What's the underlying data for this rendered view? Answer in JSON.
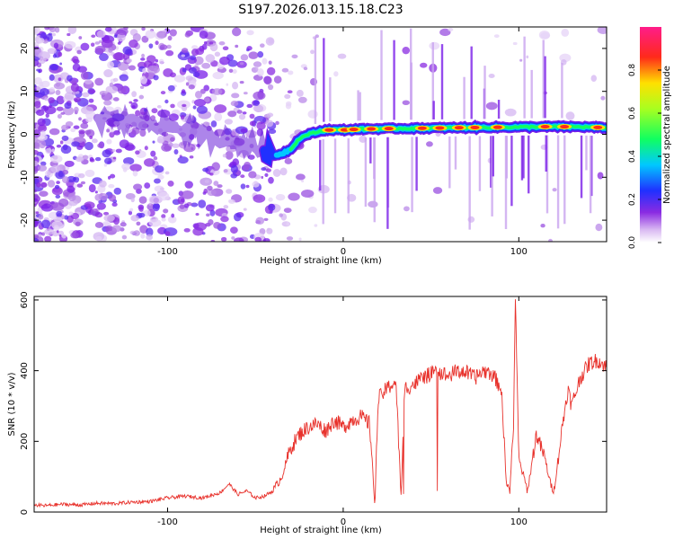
{
  "title": "S197.2026.013.15.18.C23",
  "chart_data": [
    {
      "type": "heatmap",
      "title": "S197.2026.013.15.18.C23",
      "xlabel": "Height of straight line (km)",
      "ylabel": "Frequency (Hz)",
      "xlim": [
        -176,
        150
      ],
      "ylim": [
        -25,
        25
      ],
      "xticks": [
        -100,
        0,
        100
      ],
      "yticks": [
        -20,
        -10,
        0,
        10,
        20
      ],
      "colorbar": {
        "label": "Normalized spectral amplitude",
        "range": [
          0,
          1
        ],
        "ticks": [
          0.0,
          0.2,
          0.4,
          0.6,
          0.8
        ],
        "colormap": "rainbow (white-violet-blue-cyan-green-yellow-red-magenta)"
      },
      "ridge_frequency": {
        "x": [
          -176,
          -150,
          -120,
          -100,
          -90,
          -80,
          -70,
          -60,
          -50,
          -45,
          -40,
          -35,
          -30,
          -25,
          -20,
          -15,
          -10,
          0,
          10,
          20,
          40,
          60,
          80,
          100,
          120,
          140,
          150
        ],
        "y": [
          5,
          4,
          3,
          2,
          1,
          0,
          -1,
          -2,
          -3,
          -4,
          -5,
          -4.5,
          -3.5,
          -1,
          0,
          0.5,
          1,
          1,
          1.2,
          1.3,
          1.4,
          1.5,
          1.6,
          1.7,
          1.8,
          1.7,
          1.5
        ]
      },
      "ridge_peaks_x": [
        -8,
        1,
        6,
        16,
        26,
        45,
        55,
        66,
        75,
        88,
        115,
        126,
        145
      ]
    },
    {
      "type": "line",
      "xlabel": "Height of straight line (km)",
      "ylabel": "SNR (10 * v/v)",
      "xlim": [
        -176,
        150
      ],
      "ylim": [
        0,
        610
      ],
      "xticks": [
        -100,
        0,
        100
      ],
      "yticks": [
        0,
        200,
        400,
        600
      ],
      "series": [
        {
          "name": "SNR",
          "color": "#e8322c",
          "x": [
            -176,
            -170,
            -160,
            -150,
            -140,
            -130,
            -120,
            -110,
            -100,
            -90,
            -80,
            -70,
            -65,
            -60,
            -55,
            -50,
            -45,
            -40,
            -35,
            -30,
            -25,
            -20,
            -15,
            -10,
            -5,
            0,
            5,
            10,
            15,
            18,
            20,
            25,
            30,
            33,
            35,
            40,
            45,
            50,
            55,
            60,
            65,
            70,
            75,
            80,
            85,
            90,
            93,
            95,
            97,
            98,
            100,
            105,
            110,
            115,
            118,
            120,
            125,
            128,
            130,
            135,
            140,
            145,
            150
          ],
          "y": [
            20,
            18,
            22,
            20,
            25,
            24,
            28,
            30,
            40,
            45,
            40,
            55,
            80,
            50,
            60,
            40,
            45,
            60,
            100,
            180,
            220,
            240,
            250,
            230,
            260,
            240,
            260,
            270,
            250,
            30,
            320,
            350,
            370,
            40,
            350,
            360,
            380,
            390,
            395,
            385,
            400,
            395,
            380,
            400,
            390,
            350,
            80,
            60,
            250,
            610,
            150,
            60,
            220,
            150,
            80,
            60,
            250,
            350,
            300,
            380,
            420,
            430,
            410
          ]
        }
      ]
    }
  ]
}
